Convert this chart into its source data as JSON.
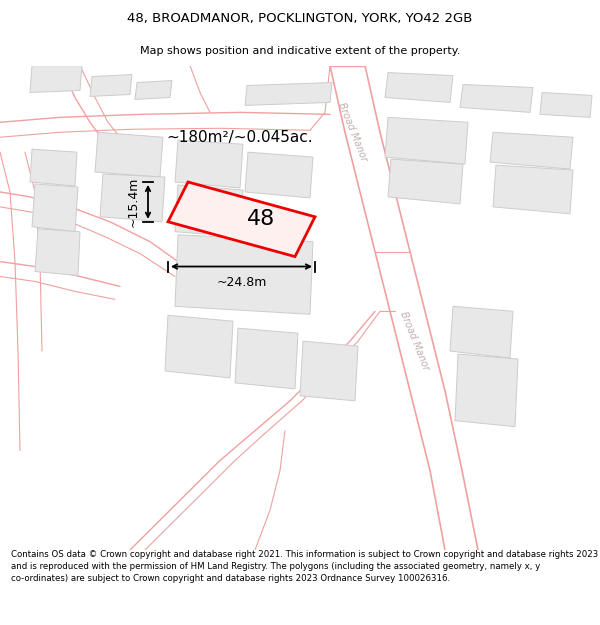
{
  "title_line1": "48, BROADMANOR, POCKLINGTON, YORK, YO42 2GB",
  "title_line2": "Map shows position and indicative extent of the property.",
  "footer_text": "Contains OS data © Crown copyright and database right 2021. This information is subject to Crown copyright and database rights 2023 and is reproduced with the permission of HM Land Registry. The polygons (including the associated geometry, namely x, y co-ordinates) are subject to Crown copyright and database rights 2023 Ordnance Survey 100026316.",
  "background_color": "#ffffff",
  "map_bg_color": "#ffffff",
  "road_line_color": "#f0a0a0",
  "building_fill": "#e8e8e8",
  "building_edge": "#cccccc",
  "highlight_edge": "#ee0000",
  "highlight_fill": "#fff0f0",
  "street_label_color": "#c0b0b0",
  "dim_label": "~180m²/~0.045ac.",
  "width_label": "~24.8m",
  "height_label": "~15.4m",
  "property_number": "48",
  "street_name": "Broad Manor"
}
